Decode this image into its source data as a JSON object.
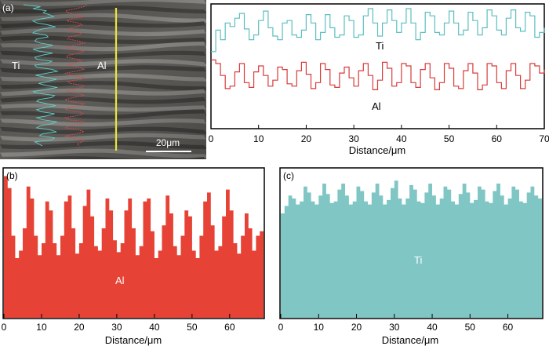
{
  "figure": {
    "panel_a_label": "(a)",
    "panel_b_label": "(b)",
    "panel_c_label": "(c)",
    "micrograph": {
      "ti_label": "Ti",
      "al_label": "Al",
      "scale_bar_label": "20μm",
      "colors": {
        "ti_trace": "#5fd0c8",
        "al_trace": "#d84a4a",
        "scan_line": "#e9e63a",
        "band_dark": "#3c3b39",
        "band_light": "#8c8a86"
      }
    }
  },
  "chart_data": [
    {
      "id": "a-line-scan",
      "type": "line",
      "title": "",
      "xlabel": "Distance/μm",
      "ylabel": "",
      "xlim": [
        0,
        70
      ],
      "ylim": [
        0,
        1
      ],
      "xticks": [
        0,
        10,
        20,
        30,
        40,
        50,
        60,
        70
      ],
      "xtick_labels": [
        "0",
        "10",
        "20",
        "30",
        "40",
        "50",
        "60",
        "70"
      ],
      "grid": false,
      "legend": "inline labels",
      "series": [
        {
          "name": "Ti",
          "color": "#5cbfbf",
          "x": [
            0,
            1,
            2,
            3,
            4,
            5,
            6,
            7,
            8,
            9,
            10,
            11,
            12,
            13,
            14,
            15,
            16,
            17,
            18,
            19,
            20,
            21,
            22,
            23,
            24,
            25,
            26,
            27,
            28,
            29,
            30,
            31,
            32,
            33,
            34,
            35,
            36,
            37,
            38,
            39,
            40,
            41,
            42,
            43,
            44,
            45,
            46,
            47,
            48,
            49,
            50,
            51,
            52,
            53,
            54,
            55,
            56,
            57,
            58,
            59,
            60,
            61,
            62,
            63,
            64,
            65,
            66,
            67,
            68,
            69,
            70
          ],
          "values": [
            0.62,
            0.8,
            0.72,
            0.86,
            0.83,
            0.9,
            0.94,
            0.81,
            0.72,
            0.76,
            0.88,
            0.96,
            0.82,
            0.75,
            0.72,
            0.86,
            0.88,
            0.76,
            0.74,
            0.8,
            0.93,
            0.86,
            0.72,
            0.78,
            0.93,
            0.82,
            0.74,
            0.76,
            0.92,
            0.88,
            0.74,
            0.76,
            0.92,
            0.98,
            0.86,
            0.75,
            0.86,
            0.97,
            0.88,
            0.78,
            0.86,
            0.98,
            0.86,
            0.72,
            0.78,
            0.95,
            0.92,
            0.78,
            0.76,
            0.86,
            0.96,
            0.86,
            0.76,
            0.8,
            0.95,
            0.88,
            0.76,
            0.82,
            0.97,
            0.92,
            0.8,
            0.76,
            0.9,
            0.97,
            0.82,
            0.79,
            0.95,
            0.92,
            0.74,
            0.78,
            0.82
          ]
        },
        {
          "name": "Al",
          "color": "#d93a3a",
          "x": [
            0,
            1,
            2,
            3,
            4,
            5,
            6,
            7,
            8,
            9,
            10,
            11,
            12,
            13,
            14,
            15,
            16,
            17,
            18,
            19,
            20,
            21,
            22,
            23,
            24,
            25,
            26,
            27,
            28,
            29,
            30,
            31,
            32,
            33,
            34,
            35,
            36,
            37,
            38,
            39,
            40,
            41,
            42,
            43,
            44,
            45,
            46,
            47,
            48,
            49,
            50,
            51,
            52,
            53,
            54,
            55,
            56,
            57,
            58,
            59,
            60,
            61,
            62,
            63,
            64,
            65,
            66,
            67,
            68,
            69,
            70
          ],
          "values": [
            0.55,
            0.52,
            0.42,
            0.31,
            0.33,
            0.45,
            0.52,
            0.36,
            0.32,
            0.45,
            0.5,
            0.42,
            0.33,
            0.38,
            0.49,
            0.47,
            0.35,
            0.33,
            0.46,
            0.53,
            0.43,
            0.31,
            0.36,
            0.52,
            0.47,
            0.34,
            0.32,
            0.44,
            0.49,
            0.4,
            0.33,
            0.46,
            0.52,
            0.42,
            0.3,
            0.38,
            0.53,
            0.48,
            0.33,
            0.36,
            0.52,
            0.5,
            0.36,
            0.32,
            0.47,
            0.52,
            0.4,
            0.3,
            0.36,
            0.52,
            0.48,
            0.33,
            0.31,
            0.46,
            0.52,
            0.44,
            0.3,
            0.34,
            0.52,
            0.5,
            0.36,
            0.31,
            0.46,
            0.52,
            0.42,
            0.31,
            0.38,
            0.52,
            0.5,
            0.44,
            0.47
          ]
        }
      ],
      "annotations": [
        "Ti",
        "Al"
      ]
    },
    {
      "id": "b-al-profile",
      "type": "area",
      "title": "",
      "xlabel": "Distance/μm",
      "ylabel": "",
      "xlim": [
        0,
        69
      ],
      "ylim": [
        0,
        1
      ],
      "xticks": [
        0,
        10,
        20,
        30,
        40,
        50,
        60
      ],
      "xtick_labels": [
        "0",
        "10",
        "20",
        "30",
        "40",
        "50",
        "60"
      ],
      "grid": false,
      "legend": "none",
      "series": [
        {
          "name": "Al",
          "color": "#e64235",
          "values": [
            0.95,
            0.87,
            0.55,
            0.4,
            0.45,
            0.6,
            0.88,
            0.8,
            0.55,
            0.42,
            0.5,
            0.78,
            0.72,
            0.5,
            0.42,
            0.55,
            0.78,
            0.82,
            0.6,
            0.43,
            0.5,
            0.75,
            0.86,
            0.68,
            0.48,
            0.45,
            0.6,
            0.8,
            0.72,
            0.52,
            0.44,
            0.5,
            0.72,
            0.8,
            0.6,
            0.42,
            0.48,
            0.78,
            0.8,
            0.58,
            0.4,
            0.45,
            0.62,
            0.82,
            0.7,
            0.48,
            0.42,
            0.55,
            0.72,
            0.68,
            0.45,
            0.4,
            0.55,
            0.78,
            0.84,
            0.62,
            0.45,
            0.48,
            0.68,
            0.86,
            0.72,
            0.5,
            0.43,
            0.55,
            0.7,
            0.6,
            0.45,
            0.55,
            0.58
          ]
        }
      ],
      "annotations": [
        "Al"
      ]
    },
    {
      "id": "c-ti-profile",
      "type": "area",
      "title": "",
      "xlabel": "Distance/μm",
      "ylabel": "",
      "xlim": [
        0,
        69
      ],
      "ylim": [
        0,
        1
      ],
      "xticks": [
        0,
        10,
        20,
        30,
        40,
        50,
        60
      ],
      "xtick_labels": [
        "0",
        "10",
        "20",
        "30",
        "40",
        "50",
        "60"
      ],
      "grid": false,
      "legend": "none",
      "series": [
        {
          "name": "Ti",
          "color": "#7fc6c5",
          "values": [
            0.7,
            0.75,
            0.82,
            0.8,
            0.76,
            0.78,
            0.88,
            0.84,
            0.78,
            0.76,
            0.82,
            0.9,
            0.83,
            0.77,
            0.78,
            0.86,
            0.9,
            0.82,
            0.76,
            0.78,
            0.88,
            0.85,
            0.78,
            0.76,
            0.84,
            0.9,
            0.82,
            0.76,
            0.79,
            0.87,
            0.92,
            0.8,
            0.76,
            0.8,
            0.89,
            0.86,
            0.78,
            0.77,
            0.84,
            0.9,
            0.82,
            0.76,
            0.8,
            0.88,
            0.86,
            0.78,
            0.76,
            0.83,
            0.9,
            0.84,
            0.77,
            0.79,
            0.88,
            0.86,
            0.78,
            0.77,
            0.85,
            0.9,
            0.82,
            0.76,
            0.8,
            0.88,
            0.86,
            0.78,
            0.77,
            0.84,
            0.88,
            0.82,
            0.8
          ]
        }
      ],
      "annotations": [
        "Ti"
      ]
    }
  ]
}
